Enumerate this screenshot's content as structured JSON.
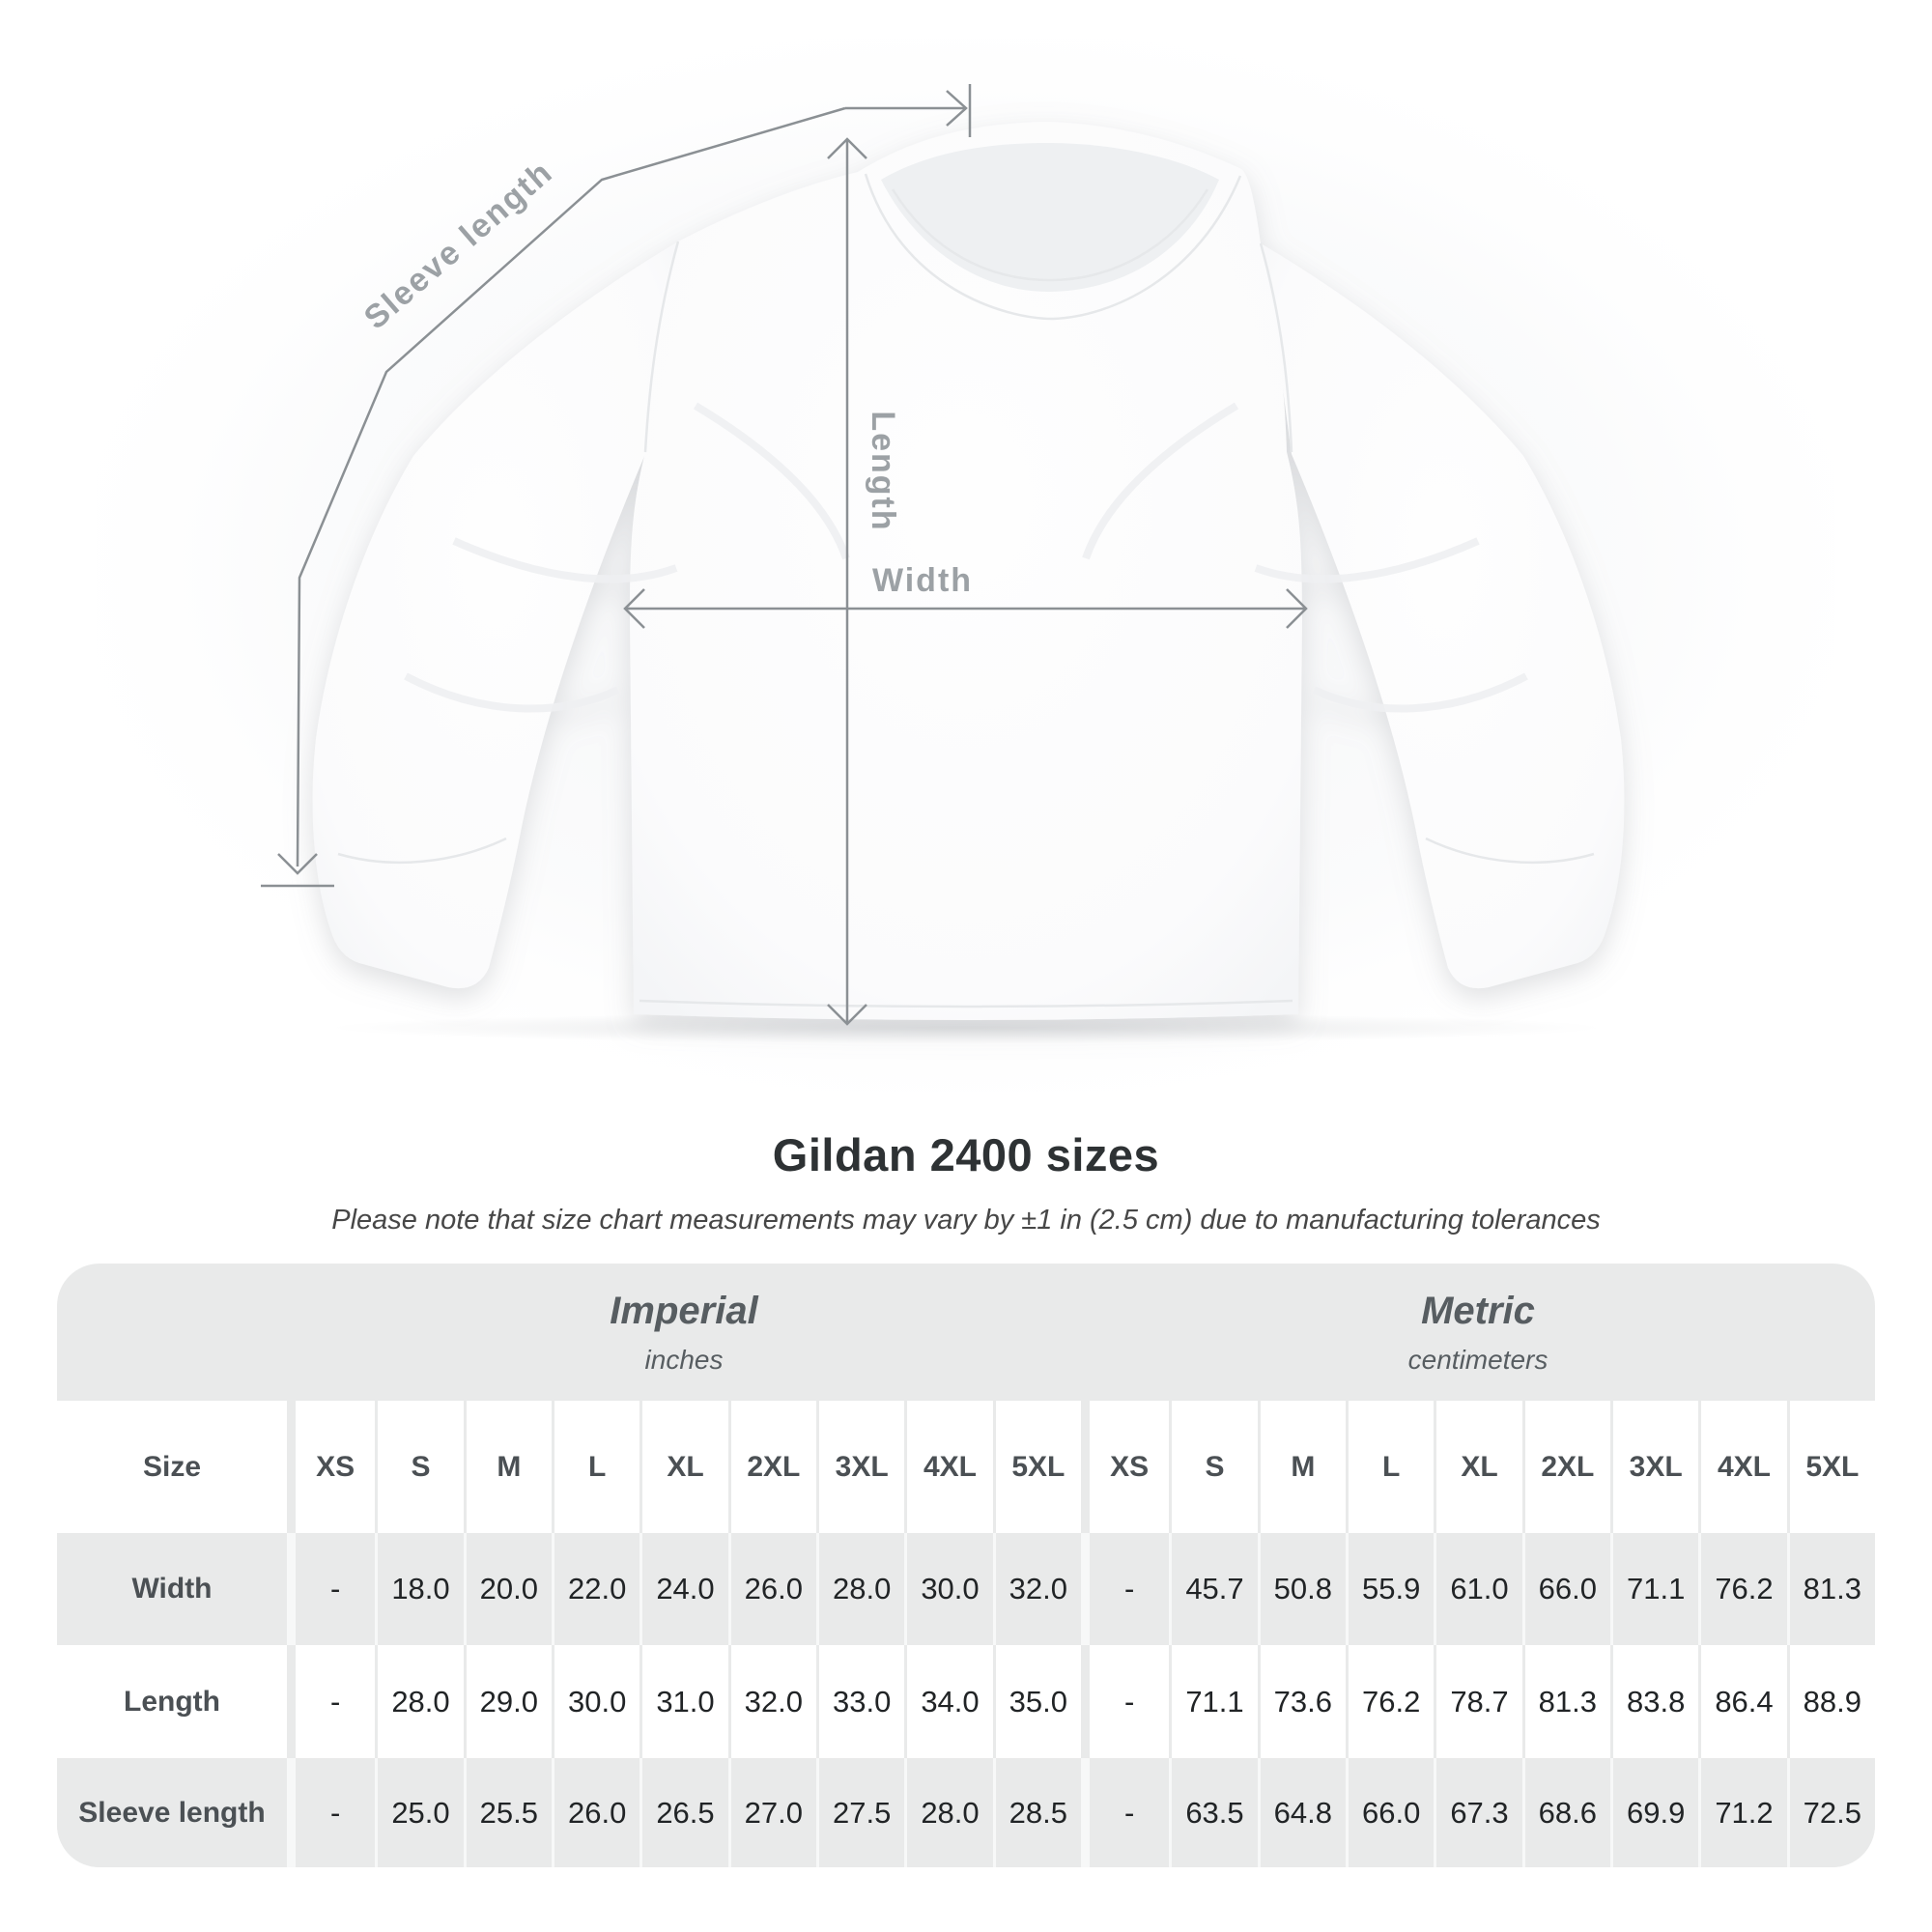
{
  "diagram": {
    "sleeve_length_label": "Sleeve length",
    "length_label": "Length",
    "width_label": "Width"
  },
  "heading": {
    "title": "Gildan 2400 sizes",
    "subtitle": "Please note that size chart measurements may vary by ±1 in (2.5 cm) due to manufacturing tolerances"
  },
  "table": {
    "size_header": "Size",
    "unit_groups": [
      {
        "name": "Imperial",
        "unit": "inches"
      },
      {
        "name": "Metric",
        "unit": "centimeters"
      }
    ],
    "sizes": [
      "XS",
      "S",
      "M",
      "L",
      "XL",
      "2XL",
      "3XL",
      "4XL",
      "5XL"
    ],
    "rows": [
      {
        "label": "Width",
        "imperial": [
          "-",
          "18.0",
          "20.0",
          "22.0",
          "24.0",
          "26.0",
          "28.0",
          "30.0",
          "32.0"
        ],
        "metric": [
          "-",
          "45.7",
          "50.8",
          "55.9",
          "61.0",
          "66.0",
          "71.1",
          "76.2",
          "81.3"
        ]
      },
      {
        "label": "Length",
        "imperial": [
          "-",
          "28.0",
          "29.0",
          "30.0",
          "31.0",
          "32.0",
          "33.0",
          "34.0",
          "35.0"
        ],
        "metric": [
          "-",
          "71.1",
          "73.6",
          "76.2",
          "78.7",
          "81.3",
          "83.8",
          "86.4",
          "88.9"
        ]
      },
      {
        "label": "Sleeve length",
        "imperial": [
          "-",
          "25.0",
          "25.5",
          "26.0",
          "26.5",
          "27.0",
          "27.5",
          "28.0",
          "28.5"
        ],
        "metric": [
          "-",
          "63.5",
          "64.8",
          "66.0",
          "67.3",
          "68.6",
          "69.9",
          "71.2",
          "72.5"
        ]
      }
    ]
  },
  "colors": {
    "table_panel_bg": "#e9eaea",
    "row_white": "#ffffff",
    "row_gray": "#e9eaea",
    "dimension_line": "#8b9094",
    "dimension_label": "#9ca1a5",
    "title_text": "#2e3234",
    "header_text": "#4b5054",
    "value_text": "#212426"
  },
  "chart_data": {
    "type": "table",
    "title": "Gildan 2400 sizes",
    "note": "Size chart measurements may vary by ±1 in (2.5 cm) due to manufacturing tolerances",
    "unit_groups": [
      "Imperial (inches)",
      "Metric (centimeters)"
    ],
    "sizes": [
      "XS",
      "S",
      "M",
      "L",
      "XL",
      "2XL",
      "3XL",
      "4XL",
      "5XL"
    ],
    "measurements": {
      "Width": {
        "imperial_in": [
          null,
          18.0,
          20.0,
          22.0,
          24.0,
          26.0,
          28.0,
          30.0,
          32.0
        ],
        "metric_cm": [
          null,
          45.7,
          50.8,
          55.9,
          61.0,
          66.0,
          71.1,
          76.2,
          81.3
        ]
      },
      "Length": {
        "imperial_in": [
          null,
          28.0,
          29.0,
          30.0,
          31.0,
          32.0,
          33.0,
          34.0,
          35.0
        ],
        "metric_cm": [
          null,
          71.1,
          73.6,
          76.2,
          78.7,
          81.3,
          83.8,
          86.4,
          88.9
        ]
      },
      "Sleeve length": {
        "imperial_in": [
          null,
          25.0,
          25.5,
          26.0,
          26.5,
          27.0,
          27.5,
          28.0,
          28.5
        ],
        "metric_cm": [
          null,
          63.5,
          64.8,
          66.0,
          67.3,
          68.6,
          69.9,
          71.2,
          72.5
        ]
      }
    }
  }
}
